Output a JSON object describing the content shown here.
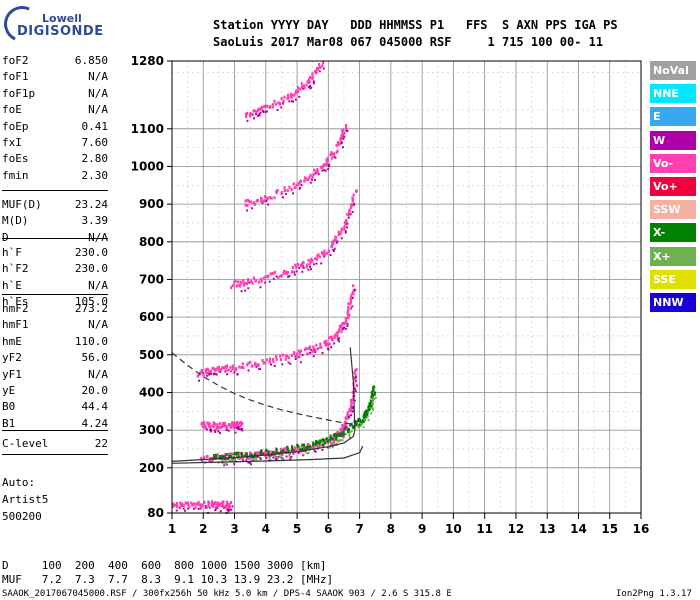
{
  "logo": {
    "top": "Lowell",
    "main": "DIGISONDE"
  },
  "header": {
    "line1": "Station YYYY DAY   DDD HHMMSS P1   FFS  S AXN PPS IGA PS",
    "line2": "SaoLuis 2017 Mar08 067 045000 RSF     1 715 100 00- 11"
  },
  "params_group1": [
    {
      "name": "foF2",
      "value": "6.850"
    },
    {
      "name": "foF1",
      "value": "N/A"
    },
    {
      "name": "foF1p",
      "value": "N/A"
    },
    {
      "name": "foE",
      "value": "N/A"
    },
    {
      "name": "foEp",
      "value": "0.41"
    },
    {
      "name": "fxI",
      "value": "7.60"
    },
    {
      "name": "foEs",
      "value": "2.80"
    },
    {
      "name": "fmin",
      "value": "2.30"
    }
  ],
  "params_group2": [
    {
      "name": "MUF(D)",
      "value": "23.24"
    },
    {
      "name": "M(D)",
      "value": "3.39"
    },
    {
      "name": "D",
      "value": "N/A"
    }
  ],
  "params_group3": [
    {
      "name": "h`F",
      "value": "230.0"
    },
    {
      "name": "h`F2",
      "value": "230.0"
    },
    {
      "name": "h`E",
      "value": "N/A"
    },
    {
      "name": "h`Es",
      "value": "105.0"
    }
  ],
  "params_group4": [
    {
      "name": "hmF2",
      "value": "273.2"
    },
    {
      "name": "hmF1",
      "value": "N/A"
    },
    {
      "name": "hmE",
      "value": "110.0"
    },
    {
      "name": "yF2",
      "value": "56.0"
    },
    {
      "name": "yF1",
      "value": "N/A"
    },
    {
      "name": "yE",
      "value": "20.0"
    },
    {
      "name": "B0",
      "value": "44.4"
    },
    {
      "name": "B1",
      "value": "4.24"
    }
  ],
  "params_group5": [
    {
      "name": "C-level",
      "value": "22"
    }
  ],
  "autoscaling": [
    "Auto:",
    "Artist5",
    "500200"
  ],
  "muf_table": {
    "d_line": "D     100  200  400  600  800 1000 1500 3000 [km]",
    "muf_line": "MUF   7.2  7.3  7.7  8.3  9.1 10.3 13.9 23.2 [MHz]"
  },
  "footer": {
    "left": "SAAOK_2017067045000.RSF / 300fx256h 50 kHz 5.0 km / DPS-4 SAAOK 903 / 2.6 S 315.8 E",
    "right": "Ion2Png 1.3.17"
  },
  "legend": [
    {
      "label": "NoVal",
      "color": "#a0a0a0"
    },
    {
      "label": "NNE",
      "color": "#00e8ff"
    },
    {
      "label": "E",
      "color": "#3aa8f0"
    },
    {
      "label": "W",
      "color": "#b000a8"
    },
    {
      "label": "Vo-",
      "color": "#ff40b0"
    },
    {
      "label": "Vo+",
      "color": "#f0003c"
    },
    {
      "label": "SSW",
      "color": "#f4b0a0"
    },
    {
      "label": "X-",
      "color": "#008000"
    },
    {
      "label": "X+",
      "color": "#70b050"
    },
    {
      "label": "SSE",
      "color": "#e0e000"
    },
    {
      "label": "NNW",
      "color": "#1a00d8"
    }
  ],
  "chart_data": {
    "type": "scatter",
    "x_ticks": [
      "1",
      "2",
      "3",
      "4",
      "5",
      "6",
      "7",
      "8",
      "9",
      "10",
      "11",
      "12",
      "13",
      "14",
      "15",
      "16"
    ],
    "y_ticks": [
      "80",
      "200",
      "300",
      "400",
      "500",
      "600",
      "700",
      "800",
      "900",
      "1000",
      "1100",
      "1280"
    ],
    "xlim": [
      1,
      16
    ],
    "ylim": [
      80,
      1280
    ],
    "grid": true,
    "traces": [
      {
        "name": "O-trace F2",
        "color": "#ff40b0",
        "points": [
          [
            1.9,
            228
          ],
          [
            2.5,
            231
          ],
          [
            3.0,
            234
          ],
          [
            3.5,
            237
          ],
          [
            4.0,
            241
          ],
          [
            4.5,
            246
          ],
          [
            5.0,
            252
          ],
          [
            5.5,
            261
          ],
          [
            6.0,
            275
          ],
          [
            6.3,
            292
          ],
          [
            6.5,
            318
          ],
          [
            6.7,
            372
          ],
          [
            6.85,
            470
          ]
        ]
      },
      {
        "name": "X-trace F2",
        "color": "#008000",
        "points": [
          [
            2.3,
            232
          ],
          [
            3.0,
            236
          ],
          [
            4.0,
            244
          ],
          [
            5.0,
            256
          ],
          [
            5.8,
            272
          ],
          [
            6.3,
            292
          ],
          [
            6.8,
            316
          ],
          [
            7.1,
            336
          ],
          [
            7.3,
            365
          ],
          [
            7.45,
            420
          ]
        ]
      },
      {
        "name": "2nd hop",
        "color": "#ff40b0",
        "points": [
          [
            1.8,
            455
          ],
          [
            2.3,
            462
          ],
          [
            3.0,
            470
          ],
          [
            4.0,
            486
          ],
          [
            5.0,
            506
          ],
          [
            5.8,
            530
          ],
          [
            6.3,
            560
          ],
          [
            6.6,
            612
          ],
          [
            6.8,
            690
          ]
        ]
      },
      {
        "name": "3rd hop",
        "color": "#ff40b0",
        "points": [
          [
            2.9,
            690
          ],
          [
            3.5,
            700
          ],
          [
            4.5,
            720
          ],
          [
            5.3,
            746
          ],
          [
            6.0,
            786
          ],
          [
            6.5,
            850
          ],
          [
            6.85,
            945
          ]
        ]
      },
      {
        "name": "4th hop",
        "color": "#ff40b0",
        "points": [
          [
            3.3,
            905
          ],
          [
            4.0,
            920
          ],
          [
            5.0,
            958
          ],
          [
            5.8,
            1002
          ],
          [
            6.3,
            1062
          ],
          [
            6.55,
            1112
          ]
        ]
      },
      {
        "name": "5th hop",
        "color": "#ff40b0",
        "points": [
          [
            3.3,
            1142
          ],
          [
            4.0,
            1158
          ],
          [
            4.7,
            1188
          ],
          [
            5.3,
            1228
          ],
          [
            5.8,
            1280
          ]
        ]
      },
      {
        "name": "Es",
        "color": "#ff40b0",
        "points": [
          [
            1.0,
            105
          ],
          [
            1.6,
            105
          ],
          [
            2.2,
            106
          ],
          [
            2.6,
            106
          ],
          [
            2.85,
            107
          ]
        ]
      },
      {
        "name": "Es 2nd",
        "color": "#ff40b0",
        "points": [
          [
            1.9,
            316
          ],
          [
            2.4,
            316
          ],
          [
            2.9,
            317
          ],
          [
            3.2,
            318
          ]
        ]
      }
    ],
    "model_curves": [
      {
        "name": "profile",
        "style": "solid",
        "points": [
          [
            1.0,
            217
          ],
          [
            2.0,
            222
          ],
          [
            3.0,
            227
          ],
          [
            4.0,
            234
          ],
          [
            5.0,
            243
          ],
          [
            6.0,
            256
          ],
          [
            6.5,
            266
          ],
          [
            6.8,
            283
          ],
          [
            6.85,
            300
          ],
          [
            6.8,
            430
          ],
          [
            6.7,
            520
          ]
        ]
      },
      {
        "name": "lower profile",
        "style": "solid",
        "points": [
          [
            1.0,
            212
          ],
          [
            2.5,
            215
          ],
          [
            4.0,
            218
          ],
          [
            5.5,
            222
          ],
          [
            6.5,
            226
          ],
          [
            7.0,
            240
          ],
          [
            7.1,
            258
          ]
        ]
      },
      {
        "name": "MUF curve",
        "style": "dashed",
        "points": [
          [
            1.0,
            505
          ],
          [
            1.5,
            472
          ],
          [
            2.0,
            442
          ],
          [
            2.5,
            418
          ],
          [
            3.0,
            397
          ],
          [
            3.5,
            380
          ],
          [
            4.0,
            366
          ],
          [
            4.5,
            354
          ],
          [
            5.0,
            344
          ],
          [
            5.5,
            335
          ],
          [
            6.0,
            327
          ],
          [
            6.5,
            319
          ],
          [
            7.0,
            313
          ]
        ]
      }
    ]
  }
}
